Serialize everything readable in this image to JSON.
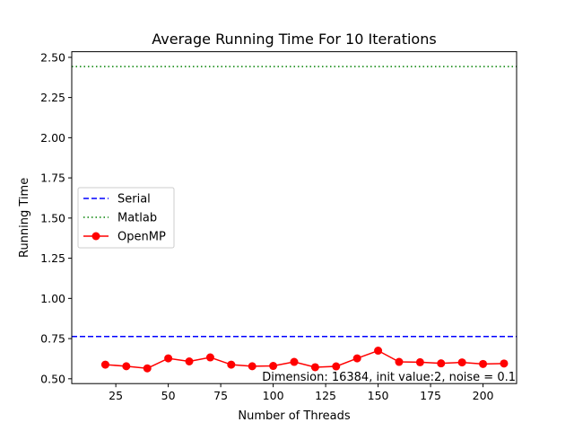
{
  "chart_data": {
    "type": "line",
    "title": "Average Running Time For 10 Iterations",
    "xlabel": "Number of Threads",
    "ylabel": "Running Time",
    "xlim": [
      4,
      216
    ],
    "ylim": [
      0.47,
      2.535
    ],
    "xticks": [
      25,
      50,
      75,
      100,
      125,
      150,
      175,
      200
    ],
    "yticks": [
      0.5,
      0.75,
      1.0,
      1.25,
      1.5,
      1.75,
      2.0,
      2.25,
      2.5
    ],
    "ytick_labels": [
      "0.50",
      "0.75",
      "1.00",
      "1.25",
      "1.50",
      "1.75",
      "2.00",
      "2.25",
      "2.50"
    ],
    "grid": false,
    "legend_position": "center-left",
    "annotation": "Dimension: 16384, init value:2, noise = 0.1",
    "series": [
      {
        "name": "Serial",
        "style": "dashed",
        "color": "#0000ff",
        "constant": 0.763
      },
      {
        "name": "Matlab",
        "style": "dotted",
        "color": "#008000",
        "constant": 2.443
      },
      {
        "name": "OpenMP",
        "style": "solid-marker",
        "color": "#ff0000",
        "x": [
          20,
          30,
          40,
          50,
          60,
          70,
          80,
          90,
          100,
          110,
          120,
          130,
          140,
          150,
          160,
          170,
          180,
          190,
          200,
          210
        ],
        "y": [
          0.588,
          0.578,
          0.565,
          0.627,
          0.608,
          0.633,
          0.588,
          0.578,
          0.58,
          0.605,
          0.572,
          0.577,
          0.627,
          0.675,
          0.605,
          0.603,
          0.596,
          0.602,
          0.592,
          0.595
        ]
      }
    ]
  }
}
